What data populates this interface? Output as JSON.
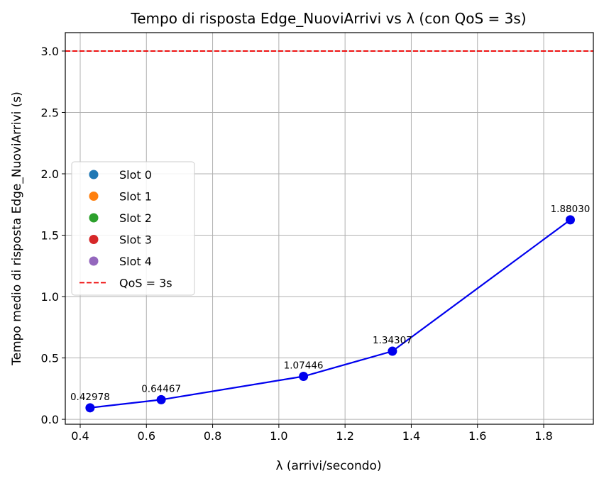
{
  "chart_data": {
    "type": "line",
    "title": "Tempo di risposta Edge_NuoviArrivi vs λ (con QoS = 3s)",
    "xlabel": "λ (arrivi/secondo)",
    "ylabel": "Tempo medio di risposta Edge_NuoviArrivi (s)",
    "xlim": [
      0.355,
      1.95
    ],
    "ylim": [
      -0.04,
      3.15
    ],
    "xticks": [
      "0.4",
      "0.6",
      "0.8",
      "1.0",
      "1.2",
      "1.4",
      "1.6",
      "1.8"
    ],
    "yticks": [
      "0.0",
      "0.5",
      "1.0",
      "1.5",
      "2.0",
      "2.5",
      "3.0"
    ],
    "grid": true,
    "series": [
      {
        "color": "#0000ee",
        "points": [
          {
            "x": 0.42978,
            "y": 0.094,
            "label": "0.42978"
          },
          {
            "x": 0.64467,
            "y": 0.16,
            "label": "0.64467"
          },
          {
            "x": 1.07446,
            "y": 0.35,
            "label": "1.07446"
          },
          {
            "x": 1.34307,
            "y": 0.555,
            "label": "1.34307"
          },
          {
            "x": 1.8803,
            "y": 1.625,
            "label": "1.88030"
          }
        ]
      }
    ],
    "qos_line": {
      "y": 3.0,
      "color": "#ee0000"
    },
    "legend": {
      "position": "center-left",
      "entries": [
        {
          "label": "Slot 0",
          "color": "#1f77b4",
          "kind": "marker"
        },
        {
          "label": "Slot 1",
          "color": "#ff7f0e",
          "kind": "marker"
        },
        {
          "label": "Slot 2",
          "color": "#2ca02c",
          "kind": "marker"
        },
        {
          "label": "Slot 3",
          "color": "#d62728",
          "kind": "marker"
        },
        {
          "label": "Slot 4",
          "color": "#9467bd",
          "kind": "marker"
        },
        {
          "label": "QoS = 3s",
          "color": "#ee0000",
          "kind": "dashed-line"
        }
      ]
    }
  }
}
